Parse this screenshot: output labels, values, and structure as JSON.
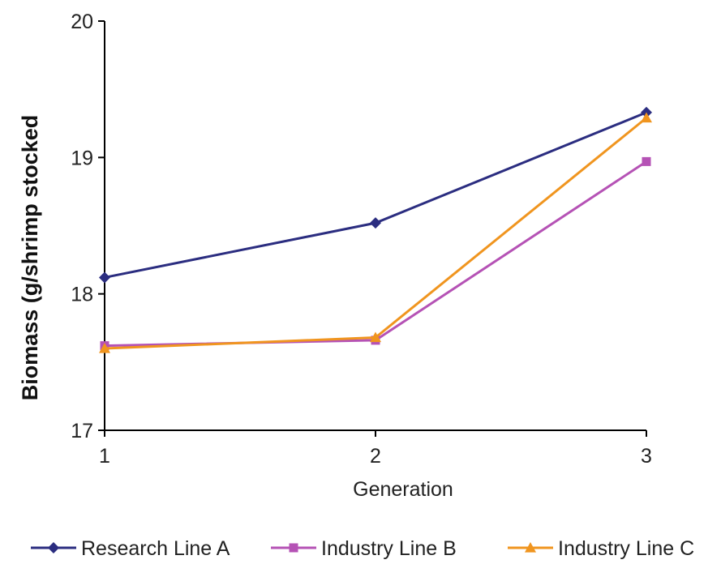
{
  "chart_data": {
    "type": "line",
    "title": "",
    "xlabel": "Generation",
    "ylabel": "Biomass (g/shrimp stocked",
    "x": [
      1,
      2,
      3
    ],
    "x_ticks": [
      "1",
      "2",
      "3"
    ],
    "ylim": [
      17,
      20
    ],
    "y_ticks": [
      "17",
      "18",
      "19",
      "20"
    ],
    "grid": false,
    "legend_position": "bottom",
    "series": [
      {
        "name": "Research Line A",
        "values": [
          18.12,
          18.52,
          19.33
        ],
        "color": "#2B2D80",
        "marker": "diamond"
      },
      {
        "name": "Industry Line B",
        "values": [
          17.62,
          17.66,
          18.97
        ],
        "color": "#B552B5",
        "marker": "square"
      },
      {
        "name": "Industry Line C",
        "values": [
          17.6,
          17.68,
          19.29
        ],
        "color": "#F0951F",
        "marker": "triangle"
      }
    ]
  }
}
